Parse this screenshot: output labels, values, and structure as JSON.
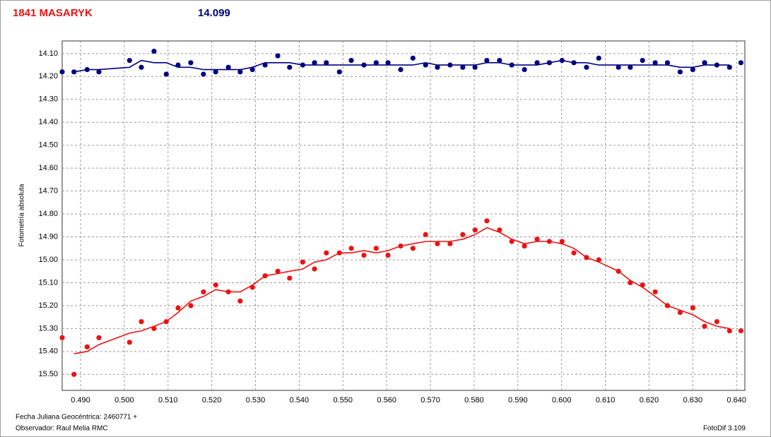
{
  "chart_data": {
    "type": "scatter",
    "title": "1841 MASARYK",
    "reference_magnitude": "14.099",
    "y_label": "Fotometría absoluta",
    "x_label": "Fecha Juliana Geocéntrica: 2460771 +",
    "observer": "Observador: Raul Melia RMC",
    "software": "FotoDif 3.109",
    "grid": true,
    "xlim": [
      0.4858,
      0.6419
    ],
    "ylim": [
      15.57,
      14.045
    ],
    "xticks": [
      {
        "value": 0.49,
        "label": "0.490"
      },
      {
        "value": 0.5,
        "label": "0.500"
      },
      {
        "value": 0.51,
        "label": "0.510"
      },
      {
        "value": 0.52,
        "label": "0.520"
      },
      {
        "value": 0.53,
        "label": "0.530"
      },
      {
        "value": 0.54,
        "label": "0.540"
      },
      {
        "value": 0.55,
        "label": "0.550"
      },
      {
        "value": 0.56,
        "label": "0.560"
      },
      {
        "value": 0.57,
        "label": "0.570"
      },
      {
        "value": 0.58,
        "label": "0.580"
      },
      {
        "value": 0.59,
        "label": "0.590"
      },
      {
        "value": 0.6,
        "label": "0.600"
      },
      {
        "value": 0.61,
        "label": "0.610"
      },
      {
        "value": 0.62,
        "label": "0.620"
      },
      {
        "value": 0.63,
        "label": "0.630"
      },
      {
        "value": 0.64,
        "label": "0.640"
      }
    ],
    "yticks": [
      {
        "value": 14.1,
        "label": "14.10"
      },
      {
        "value": 14.2,
        "label": "14.20"
      },
      {
        "value": 14.3,
        "label": "14.30"
      },
      {
        "value": 14.4,
        "label": "14.40"
      },
      {
        "value": 14.5,
        "label": "14.50"
      },
      {
        "value": 14.6,
        "label": "14.60"
      },
      {
        "value": 14.7,
        "label": "14.70"
      },
      {
        "value": 14.8,
        "label": "14.80"
      },
      {
        "value": 14.9,
        "label": "14.90"
      },
      {
        "value": 15.0,
        "label": "15.00"
      },
      {
        "value": 15.1,
        "label": "15.10"
      },
      {
        "value": 15.2,
        "label": "15.20"
      },
      {
        "value": 15.3,
        "label": "15.30"
      },
      {
        "value": 15.4,
        "label": "15.40"
      },
      {
        "value": 15.5,
        "label": "15.50"
      }
    ],
    "x": [
      0.4858,
      0.4885,
      0.4915,
      0.4942,
      0.5012,
      0.5039,
      0.5068,
      0.5096,
      0.5123,
      0.5152,
      0.5181,
      0.5209,
      0.5238,
      0.5265,
      0.5293,
      0.5322,
      0.5351,
      0.5378,
      0.5408,
      0.5435,
      0.5462,
      0.5492,
      0.5519,
      0.5548,
      0.5576,
      0.5603,
      0.5632,
      0.566,
      0.5689,
      0.5716,
      0.5745,
      0.5774,
      0.5802,
      0.5829,
      0.5858,
      0.5886,
      0.5915,
      0.5944,
      0.5972,
      0.6001,
      0.6028,
      0.6057,
      0.6085,
      0.613,
      0.6157,
      0.6185,
      0.6214,
      0.6242,
      0.6271,
      0.63,
      0.6327,
      0.6355,
      0.6384,
      0.641
    ],
    "series": [
      {
        "color": "#000080",
        "values": [
          14.18,
          14.18,
          14.17,
          14.18,
          14.13,
          14.16,
          14.09,
          14.19,
          14.15,
          14.14,
          14.19,
          14.18,
          14.16,
          14.18,
          14.17,
          14.15,
          14.11,
          14.16,
          14.15,
          14.14,
          14.14,
          14.18,
          14.13,
          14.15,
          14.14,
          14.14,
          14.17,
          14.12,
          14.15,
          14.16,
          14.15,
          14.16,
          14.16,
          14.13,
          14.13,
          14.15,
          14.17,
          14.14,
          14.14,
          14.13,
          14.14,
          14.16,
          14.12,
          14.16,
          14.16,
          14.13,
          14.14,
          14.14,
          14.18,
          14.17,
          14.14,
          14.15,
          14.16,
          14.14
        ],
        "trend": [
          null,
          14.18,
          14.17,
          14.17,
          14.16,
          14.13,
          14.14,
          14.14,
          14.16,
          14.16,
          14.17,
          14.17,
          14.17,
          14.17,
          14.16,
          14.14,
          14.14,
          14.14,
          14.15,
          14.15,
          14.15,
          14.15,
          14.15,
          14.15,
          14.15,
          14.15,
          14.15,
          14.15,
          14.14,
          14.15,
          14.15,
          14.15,
          14.15,
          14.14,
          14.14,
          14.15,
          14.15,
          14.15,
          14.14,
          14.13,
          14.14,
          14.14,
          14.15,
          14.15,
          14.15,
          14.15,
          14.15,
          14.15,
          14.16,
          14.16,
          14.15,
          14.15,
          14.15,
          null
        ]
      },
      {
        "color": "#ee1111",
        "values": [
          15.34,
          15.5,
          15.38,
          15.34,
          15.36,
          15.27,
          15.3,
          15.27,
          15.21,
          15.2,
          15.14,
          15.11,
          15.14,
          15.18,
          15.12,
          15.07,
          15.05,
          15.08,
          15.01,
          15.04,
          14.97,
          14.97,
          14.95,
          14.98,
          14.95,
          14.98,
          14.94,
          14.95,
          14.89,
          14.93,
          14.93,
          14.89,
          14.87,
          14.83,
          14.87,
          14.92,
          14.94,
          14.91,
          14.92,
          14.92,
          14.97,
          14.99,
          15.0,
          15.05,
          15.1,
          15.11,
          15.14,
          15.2,
          15.23,
          15.21,
          15.29,
          15.27,
          15.31,
          15.31
        ],
        "trend": [
          null,
          15.41,
          15.4,
          15.37,
          15.32,
          15.31,
          15.29,
          15.27,
          15.23,
          15.18,
          15.16,
          15.13,
          15.14,
          15.14,
          15.11,
          15.07,
          15.06,
          15.05,
          15.04,
          15.01,
          15.0,
          14.97,
          14.97,
          14.96,
          14.97,
          14.96,
          14.94,
          14.93,
          14.92,
          14.92,
          14.92,
          14.91,
          14.89,
          14.86,
          14.88,
          14.91,
          14.93,
          14.92,
          14.92,
          14.93,
          14.95,
          14.99,
          15.01,
          15.05,
          15.09,
          15.12,
          15.16,
          15.2,
          15.22,
          15.24,
          15.27,
          15.29,
          15.3,
          null
        ]
      }
    ]
  }
}
